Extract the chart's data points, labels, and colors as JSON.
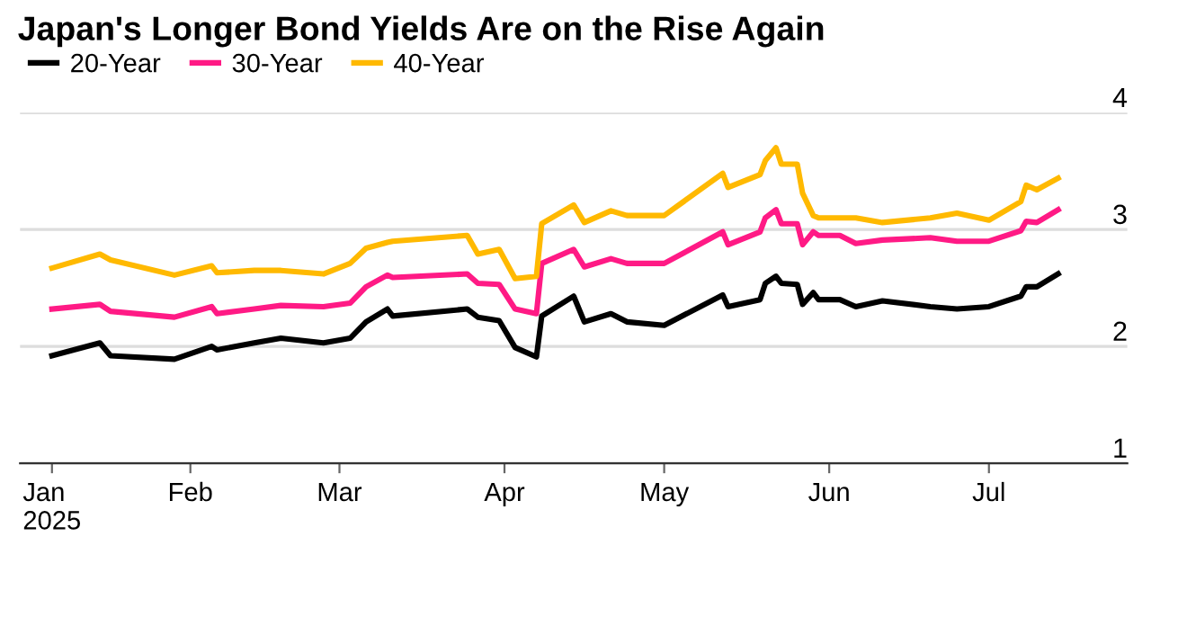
{
  "chart_data": {
    "type": "line",
    "title": "Japan's Longer Bond Yields Are on the Rise Again",
    "x": [
      "2025-01-06",
      "2025-01-15",
      "2025-01-17",
      "2025-01-29",
      "2025-02-05",
      "2025-02-06",
      "2025-02-13",
      "2025-02-18",
      "2025-02-26",
      "2025-03-03",
      "2025-03-06",
      "2025-03-10",
      "2025-03-11",
      "2025-03-25",
      "2025-03-27",
      "2025-03-31",
      "2025-04-03",
      "2025-04-07",
      "2025-04-08",
      "2025-04-14",
      "2025-04-16",
      "2025-04-21",
      "2025-04-24",
      "2025-05-01",
      "2025-05-12",
      "2025-05-13",
      "2025-05-19",
      "2025-05-20",
      "2025-05-22",
      "2025-05-23",
      "2025-05-26",
      "2025-05-27",
      "2025-05-29",
      "2025-05-30",
      "2025-06-03",
      "2025-06-06",
      "2025-06-11",
      "2025-06-20",
      "2025-06-25",
      "2025-07-01",
      "2025-07-07",
      "2025-07-08",
      "2025-07-10",
      "2025-07-14"
    ],
    "series": [
      {
        "name": "20-Year",
        "color": "#000000",
        "values": [
          1.92,
          2.03,
          1.92,
          1.89,
          2.0,
          1.97,
          2.03,
          2.07,
          2.03,
          2.07,
          2.21,
          2.32,
          2.26,
          2.32,
          2.25,
          2.22,
          1.99,
          1.91,
          2.26,
          2.43,
          2.21,
          2.28,
          2.21,
          2.18,
          2.44,
          2.34,
          2.4,
          2.54,
          2.6,
          2.54,
          2.53,
          2.36,
          2.46,
          2.4,
          2.4,
          2.34,
          2.39,
          2.34,
          2.32,
          2.34,
          2.43,
          2.51,
          2.51,
          2.62
        ]
      },
      {
        "name": "30-Year",
        "color": "#ff1a85",
        "values": [
          2.32,
          2.36,
          2.3,
          2.25,
          2.34,
          2.28,
          2.32,
          2.35,
          2.34,
          2.37,
          2.51,
          2.61,
          2.59,
          2.62,
          2.54,
          2.53,
          2.32,
          2.28,
          2.71,
          2.83,
          2.68,
          2.75,
          2.71,
          2.71,
          2.98,
          2.87,
          2.98,
          3.1,
          3.17,
          3.05,
          3.05,
          2.87,
          2.98,
          2.95,
          2.95,
          2.88,
          2.91,
          2.93,
          2.9,
          2.9,
          2.99,
          3.07,
          3.06,
          3.17
        ]
      },
      {
        "name": "40-Year",
        "color": "#ffb900",
        "values": [
          2.67,
          2.79,
          2.74,
          2.61,
          2.69,
          2.63,
          2.65,
          2.65,
          2.62,
          2.71,
          2.84,
          2.89,
          2.9,
          2.95,
          2.79,
          2.83,
          2.58,
          2.6,
          3.05,
          3.21,
          3.06,
          3.16,
          3.12,
          3.12,
          3.48,
          3.36,
          3.47,
          3.59,
          3.7,
          3.56,
          3.56,
          3.31,
          3.12,
          3.1,
          3.1,
          3.1,
          3.06,
          3.1,
          3.14,
          3.08,
          3.24,
          3.38,
          3.34,
          3.44
        ]
      }
    ],
    "xlim": [
      "2024-12-31",
      "2025-07-27"
    ],
    "xticks": [
      {
        "value": "2025-01-06",
        "label": "Jan\n2025"
      },
      {
        "value": "2025-02-01",
        "label": "Feb"
      },
      {
        "value": "2025-03-01",
        "label": "Mar"
      },
      {
        "value": "2025-04-01",
        "label": "Apr"
      },
      {
        "value": "2025-05-01",
        "label": "May"
      },
      {
        "value": "2025-06-01",
        "label": "Jun"
      },
      {
        "value": "2025-07-01",
        "label": "Jul"
      }
    ],
    "ylim": [
      1,
      4
    ],
    "yticks": [
      1,
      2,
      3,
      4
    ],
    "grid": "y",
    "legend": "top left",
    "line_style": "solid"
  }
}
